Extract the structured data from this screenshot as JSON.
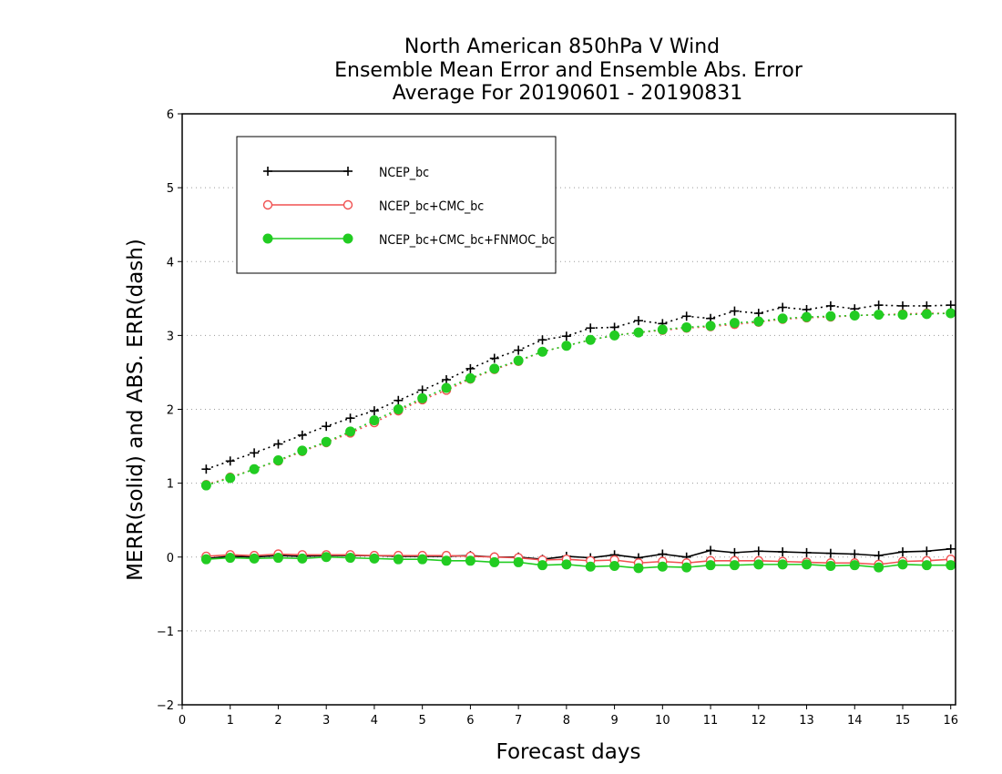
{
  "chart_data": {
    "type": "line",
    "title_lines": [
      "North American 850hPa V Wind",
      "Ensemble Mean Error and Ensemble Abs. Error",
      "Average For 20190601 - 20190831"
    ],
    "xlabel": "Forecast days",
    "ylabel": "MERR(solid) and ABS. ERR(dash)",
    "xlim": [
      0,
      16.1
    ],
    "ylim": [
      -2,
      6
    ],
    "xticks": [
      0,
      1,
      2,
      3,
      4,
      5,
      6,
      7,
      8,
      9,
      10,
      11,
      12,
      13,
      14,
      15,
      16
    ],
    "yticks": [
      -2,
      -1,
      0,
      1,
      2,
      3,
      4,
      5,
      6
    ],
    "ytick_labels": [
      "−2",
      "−1",
      "0",
      "1",
      "2",
      "3",
      "4",
      "5",
      "6"
    ],
    "grid": "horizontal dotted",
    "legend_position": "top-left",
    "x": [
      0.5,
      1.0,
      1.5,
      2.0,
      2.5,
      3.0,
      3.5,
      4.0,
      4.5,
      5.0,
      5.5,
      6.0,
      6.5,
      7.0,
      7.5,
      8.0,
      8.5,
      9.0,
      9.5,
      10.0,
      10.5,
      11.0,
      11.5,
      12.0,
      12.5,
      13.0,
      13.5,
      14.0,
      14.5,
      15.0,
      15.5,
      16.0
    ],
    "series": [
      {
        "name": "NCEP_bc",
        "color": "#000000",
        "marker": "plus",
        "merr": [
          -0.02,
          0.01,
          0.0,
          0.02,
          0.01,
          0.02,
          0.02,
          0.02,
          0.01,
          0.01,
          0.01,
          0.02,
          0.0,
          0.0,
          -0.03,
          0.01,
          -0.01,
          0.03,
          -0.01,
          0.04,
          0.0,
          0.09,
          0.06,
          0.08,
          0.07,
          0.06,
          0.05,
          0.04,
          0.02,
          0.07,
          0.08,
          0.11
        ],
        "abs_err": [
          1.19,
          1.3,
          1.41,
          1.53,
          1.65,
          1.77,
          1.88,
          1.98,
          2.12,
          2.26,
          2.4,
          2.55,
          2.69,
          2.8,
          2.94,
          2.99,
          3.1,
          3.11,
          3.2,
          3.16,
          3.26,
          3.23,
          3.33,
          3.3,
          3.38,
          3.35,
          3.4,
          3.36,
          3.41,
          3.4,
          3.4,
          3.41
        ]
      },
      {
        "name": "NCEP_bc+CMC_bc",
        "color": "#f05050",
        "marker": "open-circle",
        "merr": [
          0.01,
          0.03,
          0.02,
          0.04,
          0.03,
          0.03,
          0.03,
          0.02,
          0.02,
          0.02,
          0.02,
          0.01,
          0.0,
          -0.01,
          -0.04,
          -0.03,
          -0.05,
          -0.04,
          -0.08,
          -0.06,
          -0.08,
          -0.05,
          -0.05,
          -0.05,
          -0.06,
          -0.07,
          -0.08,
          -0.08,
          -0.1,
          -0.06,
          -0.05,
          -0.03
        ],
        "abs_err": [
          0.98,
          1.08,
          1.19,
          1.3,
          1.43,
          1.55,
          1.68,
          1.82,
          1.98,
          2.13,
          2.26,
          2.41,
          2.54,
          2.65,
          2.78,
          2.86,
          2.94,
          3.0,
          3.04,
          3.07,
          3.1,
          3.12,
          3.15,
          3.18,
          3.22,
          3.24,
          3.25,
          3.27,
          3.28,
          3.29,
          3.3,
          3.3
        ]
      },
      {
        "name": "NCEP_bc+CMC_bc+FNMOC_bc",
        "color": "#22cc22",
        "marker": "filled-circle",
        "merr": [
          -0.03,
          -0.01,
          -0.02,
          -0.01,
          -0.02,
          0.0,
          -0.01,
          -0.02,
          -0.03,
          -0.03,
          -0.05,
          -0.05,
          -0.07,
          -0.07,
          -0.11,
          -0.1,
          -0.13,
          -0.12,
          -0.15,
          -0.13,
          -0.14,
          -0.11,
          -0.11,
          -0.1,
          -0.1,
          -0.1,
          -0.12,
          -0.11,
          -0.14,
          -0.1,
          -0.11,
          -0.11
        ],
        "abs_err": [
          0.97,
          1.07,
          1.19,
          1.31,
          1.44,
          1.56,
          1.7,
          1.85,
          2.0,
          2.15,
          2.29,
          2.42,
          2.55,
          2.66,
          2.78,
          2.86,
          2.94,
          3.0,
          3.04,
          3.08,
          3.11,
          3.13,
          3.17,
          3.19,
          3.23,
          3.25,
          3.26,
          3.27,
          3.28,
          3.28,
          3.29,
          3.3
        ]
      }
    ]
  }
}
